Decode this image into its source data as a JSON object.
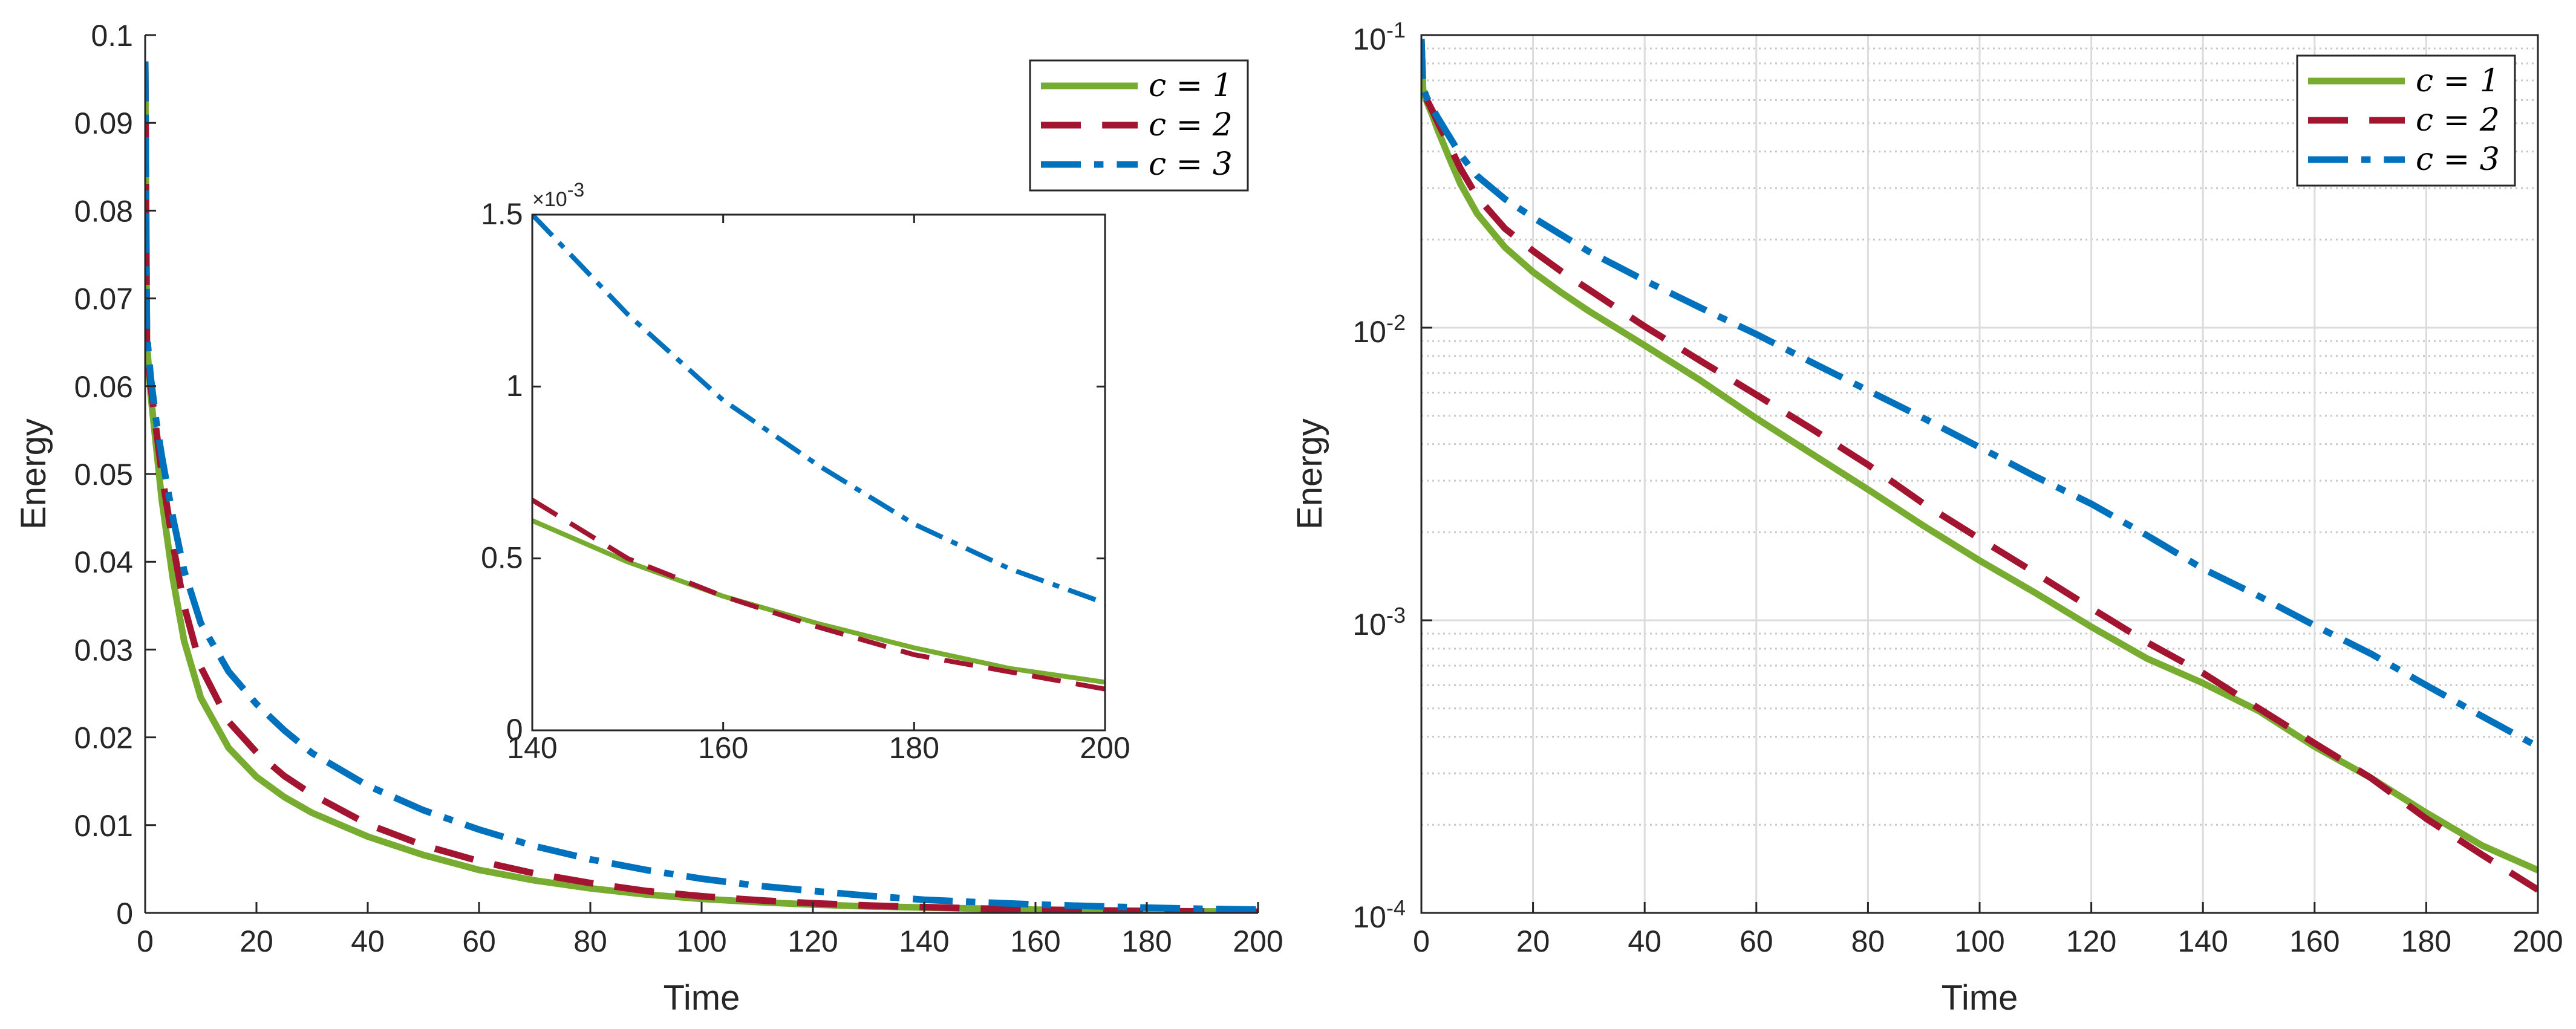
{
  "chart_data": [
    {
      "id": "main",
      "type": "line",
      "yscale": "linear",
      "xlabel": "Time",
      "ylabel": "Energy",
      "xlim": [
        0,
        200
      ],
      "ylim": [
        0,
        0.1
      ],
      "xticks": [
        0,
        20,
        40,
        60,
        80,
        100,
        120,
        140,
        160,
        180,
        200
      ],
      "xticklabels": [
        "0",
        "20",
        "40",
        "60",
        "80",
        "100",
        "120",
        "140",
        "160",
        "180",
        "200"
      ],
      "yticks": [
        0,
        0.01,
        0.02,
        0.03,
        0.04,
        0.05,
        0.06,
        0.07,
        0.08,
        0.09,
        0.1
      ],
      "yticklabels": [
        "0",
        "0.01",
        "0.02",
        "0.03",
        "0.04",
        "0.05",
        "0.06",
        "0.07",
        "0.08",
        "0.09",
        "0.1"
      ],
      "grid": false,
      "legend_position": "top-right",
      "series": [
        {
          "name": "c = 1",
          "color": "#77AC30",
          "style": "solid",
          "x": [
            0,
            0.3,
            1,
            2,
            3,
            5,
            7,
            10,
            15,
            20,
            25,
            30,
            40,
            50,
            60,
            70,
            80,
            90,
            100,
            110,
            120,
            130,
            140,
            150,
            160,
            170,
            180,
            190,
            200
          ],
          "y": [
            0.097,
            0.065,
            0.059,
            0.053,
            0.047,
            0.038,
            0.031,
            0.0245,
            0.0188,
            0.0155,
            0.0132,
            0.0114,
            0.0087,
            0.0066,
            0.0049,
            0.0037,
            0.0028,
            0.0021,
            0.0016,
            0.00124,
            0.00095,
            0.00074,
            0.00061,
            0.00049,
            0.00037,
            0.00029,
            0.00022,
            0.00017,
            0.00014
          ]
        },
        {
          "name": "c = 2",
          "color": "#A2142F",
          "style": "dashed",
          "x": [
            0,
            0.3,
            1,
            2,
            3,
            5,
            7,
            10,
            15,
            20,
            25,
            30,
            40,
            50,
            60,
            70,
            80,
            90,
            100,
            110,
            120,
            130,
            140,
            150,
            160,
            170,
            180,
            190,
            200
          ],
          "y": [
            0.097,
            0.065,
            0.06,
            0.055,
            0.05,
            0.042,
            0.035,
            0.028,
            0.0218,
            0.0183,
            0.0156,
            0.0135,
            0.0101,
            0.0077,
            0.0059,
            0.0045,
            0.0034,
            0.0025,
            0.0019,
            0.00145,
            0.0011,
            0.00084,
            0.00066,
            0.0005,
            0.00038,
            0.00029,
            0.00021,
            0.000158,
            0.00012
          ]
        },
        {
          "name": "c = 3",
          "color": "#0072BD",
          "style": "dashdot",
          "x": [
            0,
            0.3,
            1,
            2,
            3,
            5,
            7,
            10,
            15,
            20,
            25,
            30,
            40,
            50,
            60,
            70,
            80,
            90,
            100,
            110,
            120,
            130,
            140,
            150,
            160,
            170,
            180,
            190,
            200
          ],
          "y": [
            0.097,
            0.066,
            0.061,
            0.056,
            0.052,
            0.045,
            0.039,
            0.033,
            0.0275,
            0.0238,
            0.0208,
            0.0182,
            0.0145,
            0.0117,
            0.0095,
            0.0076,
            0.0061,
            0.0049,
            0.0039,
            0.0031,
            0.0025,
            0.00195,
            0.0015,
            0.00121,
            0.00096,
            0.00077,
            0.0006,
            0.00047,
            0.00037
          ]
        }
      ]
    },
    {
      "id": "inset",
      "type": "line",
      "yscale": "linear",
      "xlim": [
        140,
        200
      ],
      "ylim": [
        0,
        0.0015
      ],
      "xticks": [
        140,
        160,
        180,
        200
      ],
      "xticklabels": [
        "140",
        "160",
        "180",
        "200"
      ],
      "yticks": [
        0,
        0.0005,
        0.001,
        0.0015
      ],
      "yticklabels": [
        "0",
        "0.5",
        "1",
        "1.5"
      ],
      "yexponent_base": "×10",
      "yexponent_power": "-3",
      "series": [
        {
          "name": "c = 1",
          "color": "#77AC30",
          "style": "solid",
          "x": [
            140,
            150,
            160,
            170,
            180,
            190,
            200
          ],
          "y": [
            0.00061,
            0.00049,
            0.00039,
            0.00031,
            0.00024,
            0.00018,
            0.00014
          ]
        },
        {
          "name": "c = 2",
          "color": "#A2142F",
          "style": "dashed",
          "x": [
            140,
            150,
            160,
            170,
            180,
            190,
            200
          ],
          "y": [
            0.00067,
            0.0005,
            0.00039,
            0.0003,
            0.00022,
            0.00017,
            0.00012
          ]
        },
        {
          "name": "c = 3",
          "color": "#0072BD",
          "style": "dashdot",
          "x": [
            140,
            150,
            160,
            170,
            180,
            190,
            200
          ],
          "y": [
            0.0015,
            0.00121,
            0.00096,
            0.00077,
            0.0006,
            0.00047,
            0.00037
          ]
        }
      ]
    },
    {
      "id": "log",
      "type": "line",
      "yscale": "log",
      "xlabel": "Time",
      "ylabel": "Energy",
      "xlim": [
        0,
        200
      ],
      "ylim": [
        0.0001,
        0.1
      ],
      "xticks": [
        0,
        20,
        40,
        60,
        80,
        100,
        120,
        140,
        160,
        180,
        200
      ],
      "xticklabels": [
        "0",
        "20",
        "40",
        "60",
        "80",
        "100",
        "120",
        "140",
        "160",
        "180",
        "200"
      ],
      "yticks": [
        0.0001,
        0.001,
        0.01,
        0.1
      ],
      "ytick_bases": [
        "10",
        "10",
        "10",
        "10"
      ],
      "ytick_powers": [
        "-4",
        "-3",
        "-2",
        "-1"
      ],
      "grid": true,
      "minor_grid": true,
      "legend_position": "top-right",
      "series": [
        {
          "name": "c = 1",
          "color": "#77AC30",
          "style": "solid",
          "x": [
            0,
            0.3,
            1,
            2,
            3,
            5,
            7,
            10,
            15,
            20,
            25,
            30,
            40,
            50,
            60,
            70,
            80,
            90,
            100,
            110,
            120,
            130,
            140,
            150,
            160,
            170,
            180,
            190,
            200
          ],
          "y": [
            0.097,
            0.065,
            0.059,
            0.053,
            0.047,
            0.038,
            0.031,
            0.0245,
            0.0188,
            0.0155,
            0.0132,
            0.0114,
            0.0087,
            0.0066,
            0.0049,
            0.0037,
            0.0028,
            0.0021,
            0.0016,
            0.00124,
            0.00095,
            0.00074,
            0.00061,
            0.00049,
            0.00037,
            0.00029,
            0.00022,
            0.00017,
            0.00014
          ]
        },
        {
          "name": "c = 2",
          "color": "#A2142F",
          "style": "dashed",
          "x": [
            0,
            0.3,
            1,
            2,
            3,
            5,
            7,
            10,
            15,
            20,
            25,
            30,
            40,
            50,
            60,
            70,
            80,
            90,
            100,
            110,
            120,
            130,
            140,
            150,
            160,
            170,
            180,
            190,
            200
          ],
          "y": [
            0.097,
            0.065,
            0.06,
            0.055,
            0.05,
            0.042,
            0.035,
            0.028,
            0.0218,
            0.0183,
            0.0156,
            0.0135,
            0.0101,
            0.0077,
            0.0059,
            0.0045,
            0.0034,
            0.0025,
            0.0019,
            0.00145,
            0.0011,
            0.00084,
            0.00066,
            0.0005,
            0.00038,
            0.00029,
            0.00021,
            0.000158,
            0.00012
          ]
        },
        {
          "name": "c = 3",
          "color": "#0072BD",
          "style": "dashdot",
          "x": [
            0,
            0.3,
            1,
            2,
            3,
            5,
            7,
            10,
            15,
            20,
            25,
            30,
            40,
            50,
            60,
            70,
            80,
            90,
            100,
            110,
            120,
            130,
            140,
            150,
            160,
            170,
            180,
            190,
            200
          ],
          "y": [
            0.097,
            0.066,
            0.061,
            0.056,
            0.052,
            0.045,
            0.039,
            0.033,
            0.0275,
            0.0238,
            0.0208,
            0.0182,
            0.0145,
            0.0117,
            0.0095,
            0.0076,
            0.0061,
            0.0049,
            0.0039,
            0.0031,
            0.0025,
            0.00195,
            0.0015,
            0.00121,
            0.00096,
            0.00077,
            0.0006,
            0.00047,
            0.00037
          ]
        }
      ]
    }
  ]
}
